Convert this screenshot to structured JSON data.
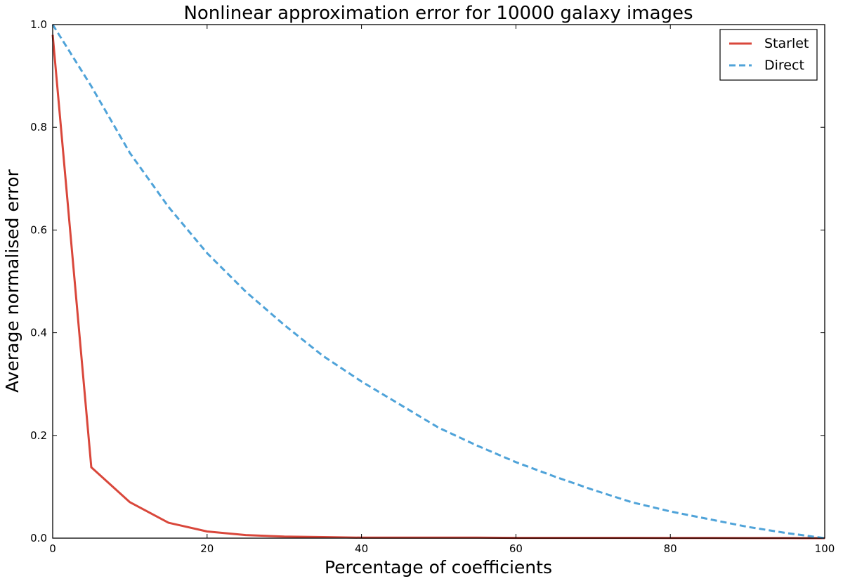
{
  "chart_data": {
    "type": "line",
    "title": "Nonlinear approximation error for 10000 galaxy images",
    "xlabel": "Percentage of coefficients",
    "ylabel": "Average normalised error",
    "xlim": [
      0,
      100
    ],
    "ylim": [
      0.0,
      1.0
    ],
    "xticks": [
      0,
      20,
      40,
      60,
      80,
      100
    ],
    "xtick_labels": [
      "0",
      "20",
      "40",
      "60",
      "80",
      "100"
    ],
    "yticks": [
      0.0,
      0.2,
      0.4,
      0.6,
      0.8,
      1.0
    ],
    "ytick_labels": [
      "0.0",
      "0.2",
      "0.4",
      "0.6",
      "0.8",
      "1.0"
    ],
    "grid": false,
    "legend_position": "top-right",
    "series": [
      {
        "name": "Starlet",
        "color": "#d9473b",
        "style": "solid",
        "x": [
          0,
          5,
          10,
          15,
          20,
          25,
          30,
          35,
          40,
          45,
          50,
          55,
          60,
          65,
          70,
          75,
          80,
          85,
          90,
          95,
          100
        ],
        "y": [
          0.98,
          0.138,
          0.07,
          0.03,
          0.013,
          0.006,
          0.003,
          0.002,
          0.001,
          0.001,
          0.001,
          0.001,
          0.0005,
          0.0005,
          0.0005,
          0.0005,
          0.0003,
          0.0003,
          0.0002,
          0.0001,
          0.0
        ]
      },
      {
        "name": "Direct",
        "color": "#4fa3d9",
        "style": "dashed",
        "x": [
          0,
          5,
          10,
          15,
          20,
          25,
          30,
          35,
          40,
          45,
          50,
          55,
          60,
          65,
          70,
          75,
          80,
          85,
          90,
          95,
          100
        ],
        "y": [
          1.0,
          0.88,
          0.75,
          0.645,
          0.555,
          0.48,
          0.415,
          0.355,
          0.305,
          0.26,
          0.215,
          0.18,
          0.148,
          0.12,
          0.094,
          0.07,
          0.052,
          0.037,
          0.022,
          0.01,
          0.0
        ]
      }
    ]
  }
}
